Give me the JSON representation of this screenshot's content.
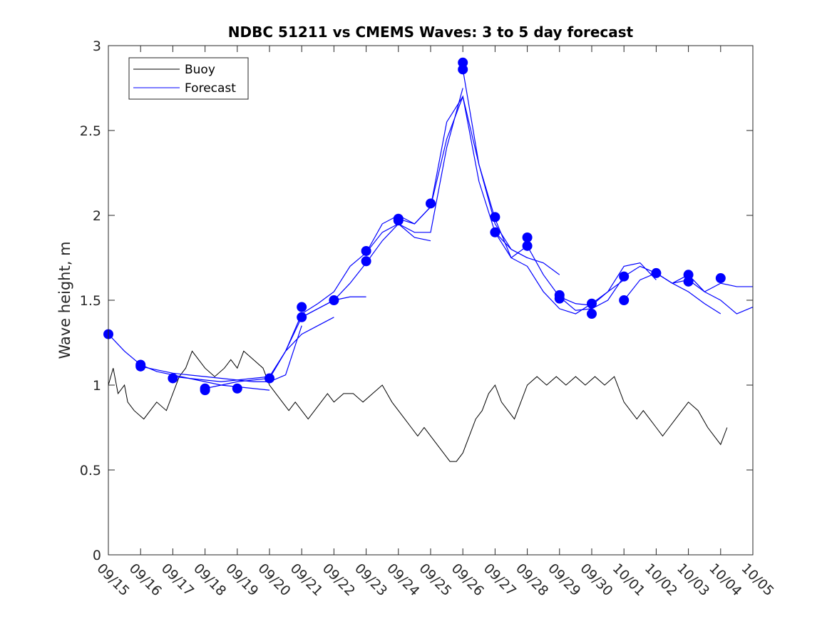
{
  "chart_data": {
    "type": "line",
    "title": "NDBC 51211 vs CMEMS Waves: 3 to 5 day forecast",
    "xlabel": "",
    "ylabel": "Wave height, m",
    "ylim": [
      0,
      3
    ],
    "yticks": [
      0,
      0.5,
      1,
      1.5,
      2,
      2.5,
      3
    ],
    "ytick_labels": [
      "0",
      "0.5",
      "1",
      "1.5",
      "2",
      "2.5",
      "3"
    ],
    "xlim": [
      0,
      20
    ],
    "xtick_labels": [
      "09/15",
      "09/16",
      "09/17",
      "09/18",
      "09/19",
      "09/20",
      "09/21",
      "09/22",
      "09/23",
      "09/24",
      "09/25",
      "09/26",
      "09/27",
      "09/28",
      "09/29",
      "09/30",
      "10/01",
      "10/02",
      "10/03",
      "10/04",
      "10/05"
    ],
    "x_units": "days since 09/15",
    "legend": {
      "position": "top-left",
      "entries": [
        {
          "name": "Buoy",
          "color": "#000000"
        },
        {
          "name": "Forecast",
          "color": "#0000ff"
        }
      ]
    },
    "colors": {
      "buoy": "#000000",
      "forecast": "#0000ff"
    },
    "buoy": {
      "name": "Buoy",
      "x": [
        0,
        0.15,
        0.3,
        0.5,
        0.6,
        0.8,
        1.1,
        1.3,
        1.5,
        1.8,
        2.0,
        2.2,
        2.4,
        2.6,
        2.8,
        3.0,
        3.3,
        3.6,
        3.8,
        4.0,
        4.2,
        4.5,
        4.8,
        5.0,
        5.2,
        5.4,
        5.6,
        5.8,
        6.0,
        6.2,
        6.4,
        6.6,
        6.8,
        7.0,
        7.3,
        7.6,
        7.9,
        8.2,
        8.5,
        8.8,
        9.0,
        9.2,
        9.4,
        9.6,
        9.8,
        10.0,
        10.2,
        10.4,
        10.6,
        10.8,
        11.0,
        11.2,
        11.4,
        11.6,
        11.8,
        12.0,
        12.2,
        12.4,
        12.6,
        12.8,
        13.0,
        13.3,
        13.6,
        13.9,
        14.2,
        14.5,
        14.8,
        15.1,
        15.4,
        15.7,
        16.0,
        16.2,
        16.4,
        16.6,
        16.8,
        17.0,
        17.2,
        17.4,
        17.6,
        17.8,
        18.0,
        18.3,
        18.6,
        18.8,
        19.0,
        19.2
      ],
      "values": [
        1.0,
        1.1,
        0.95,
        1.0,
        0.9,
        0.85,
        0.8,
        0.85,
        0.9,
        0.85,
        0.95,
        1.05,
        1.1,
        1.2,
        1.15,
        1.1,
        1.05,
        1.1,
        1.15,
        1.1,
        1.2,
        1.15,
        1.1,
        1.0,
        0.95,
        0.9,
        0.85,
        0.9,
        0.85,
        0.8,
        0.85,
        0.9,
        0.95,
        0.9,
        0.95,
        0.95,
        0.9,
        0.95,
        1.0,
        0.9,
        0.85,
        0.8,
        0.75,
        0.7,
        0.75,
        0.7,
        0.65,
        0.6,
        0.55,
        0.55,
        0.6,
        0.7,
        0.8,
        0.85,
        0.95,
        1.0,
        0.9,
        0.85,
        0.8,
        0.9,
        1.0,
        1.05,
        1.0,
        1.05,
        1.0,
        1.05,
        1.0,
        1.05,
        1.0,
        1.05,
        0.9,
        0.85,
        0.8,
        0.85,
        0.8,
        0.75,
        0.7,
        0.75,
        0.8,
        0.85,
        0.9,
        0.85,
        0.75,
        0.7,
        0.65,
        0.75
      ]
    },
    "forecast_runs": [
      {
        "name": "Forecast",
        "x": [
          0,
          0.5,
          1.0,
          1.5,
          2.0,
          2.5,
          3.0,
          3.5,
          4.0,
          4.5,
          5.0
        ],
        "values": [
          1.3,
          1.2,
          1.12,
          1.08,
          1.06,
          1.04,
          1.02,
          1.0,
          0.99,
          0.98,
          0.97
        ]
      },
      {
        "name": "Forecast",
        "x": [
          1.0,
          1.5,
          2.0,
          2.5,
          3.0,
          3.5,
          4.0,
          4.5,
          5.0,
          5.5,
          6.0
        ],
        "values": [
          1.11,
          1.09,
          1.07,
          1.06,
          1.05,
          1.04,
          1.03,
          1.02,
          1.02,
          1.06,
          1.35
        ]
      },
      {
        "name": "Forecast",
        "x": [
          2.0,
          2.5,
          3.0,
          3.5,
          4.0,
          4.5,
          5.0,
          5.5,
          6.0,
          6.5,
          7.0
        ],
        "values": [
          1.05,
          1.04,
          1.03,
          1.02,
          1.03,
          1.04,
          1.05,
          1.2,
          1.3,
          1.35,
          1.4
        ]
      },
      {
        "name": "Forecast",
        "x": [
          3.0,
          3.5,
          4.0,
          4.5,
          5.0,
          5.5,
          6.0,
          6.5,
          7.0,
          7.5,
          8.0
        ],
        "values": [
          0.98,
          1.0,
          1.02,
          1.03,
          1.04,
          1.2,
          1.4,
          1.45,
          1.5,
          1.52,
          1.52
        ]
      },
      {
        "name": "Forecast",
        "x": [
          5.0,
          5.5,
          6.0,
          6.5,
          7.0,
          7.5,
          8.0,
          8.5,
          9.0,
          9.5,
          10.0
        ],
        "values": [
          1.04,
          1.2,
          1.42,
          1.48,
          1.55,
          1.7,
          1.78,
          1.9,
          1.95,
          1.87,
          1.85
        ]
      },
      {
        "name": "Forecast",
        "x": [
          6.0,
          6.5,
          7.0,
          7.5,
          8.0,
          8.5,
          9.0,
          9.5,
          10.0,
          10.5,
          11.0
        ],
        "values": [
          1.4,
          1.45,
          1.5,
          1.6,
          1.72,
          1.85,
          1.95,
          1.9,
          1.9,
          2.4,
          2.75
        ]
      },
      {
        "name": "Forecast",
        "x": [
          8.0,
          8.5,
          9.0,
          9.5,
          10.0,
          10.5,
          11.0,
          11.5,
          12.0,
          12.5,
          13.0
        ],
        "values": [
          1.78,
          1.95,
          2.0,
          1.95,
          2.05,
          2.55,
          2.7,
          2.3,
          1.95,
          1.8,
          1.75
        ]
      },
      {
        "name": "Forecast",
        "x": [
          9.0,
          9.5,
          10.0,
          10.5,
          11.0,
          11.5,
          12.0,
          12.5,
          13.0,
          13.5,
          14.0
        ],
        "values": [
          1.98,
          1.95,
          2.05,
          2.45,
          2.7,
          2.2,
          1.9,
          1.8,
          1.75,
          1.72,
          1.65
        ]
      },
      {
        "name": "Forecast",
        "x": [
          11.0,
          11.5,
          12.0,
          12.5,
          13.0,
          13.5,
          14.0,
          14.5,
          15.0,
          15.5,
          16.0
        ],
        "values": [
          2.86,
          2.3,
          1.98,
          1.75,
          1.7,
          1.55,
          1.45,
          1.42,
          1.48,
          1.55,
          1.62
        ]
      },
      {
        "name": "Forecast",
        "x": [
          12.0,
          12.5,
          13.0,
          13.5,
          14.0,
          14.5,
          15.0,
          15.5,
          16.0,
          16.5,
          17.0
        ],
        "values": [
          1.9,
          1.75,
          1.82,
          1.65,
          1.52,
          1.48,
          1.47,
          1.55,
          1.7,
          1.72,
          1.62
        ]
      },
      {
        "name": "Forecast",
        "x": [
          14.0,
          14.5,
          15.0,
          15.5,
          16.0,
          16.5,
          17.0,
          17.5,
          18.0,
          18.5,
          19.0
        ],
        "values": [
          1.52,
          1.44,
          1.45,
          1.5,
          1.64,
          1.7,
          1.66,
          1.6,
          1.55,
          1.48,
          1.42
        ]
      },
      {
        "name": "Forecast",
        "x": [
          16.0,
          16.5,
          17.0,
          17.5,
          18.0,
          18.5,
          19.0,
          19.5,
          20.0
        ],
        "values": [
          1.5,
          1.62,
          1.66,
          1.6,
          1.62,
          1.55,
          1.5,
          1.42,
          1.46
        ]
      },
      {
        "name": "Forecast",
        "x": [
          17.0,
          17.5,
          18.0,
          18.5,
          19.0,
          19.5,
          20.0
        ],
        "values": [
          1.66,
          1.6,
          1.65,
          1.55,
          1.6,
          1.58,
          1.58
        ]
      }
    ],
    "forecast_start_markers": {
      "x": [
        0,
        1,
        1,
        2,
        3,
        3,
        4,
        5,
        6,
        6,
        7,
        8,
        8,
        9,
        9,
        10,
        11,
        11,
        12,
        12,
        13,
        13,
        14,
        14,
        15,
        15,
        16,
        16,
        17,
        18,
        18,
        19
      ],
      "values": [
        1.3,
        1.12,
        1.11,
        1.04,
        0.97,
        0.98,
        0.98,
        1.04,
        1.46,
        1.4,
        1.5,
        1.79,
        1.73,
        1.98,
        1.97,
        2.07,
        2.9,
        2.86,
        1.99,
        1.9,
        1.87,
        1.82,
        1.53,
        1.51,
        1.48,
        1.42,
        1.64,
        1.5,
        1.66,
        1.65,
        1.61,
        1.63
      ]
    }
  }
}
